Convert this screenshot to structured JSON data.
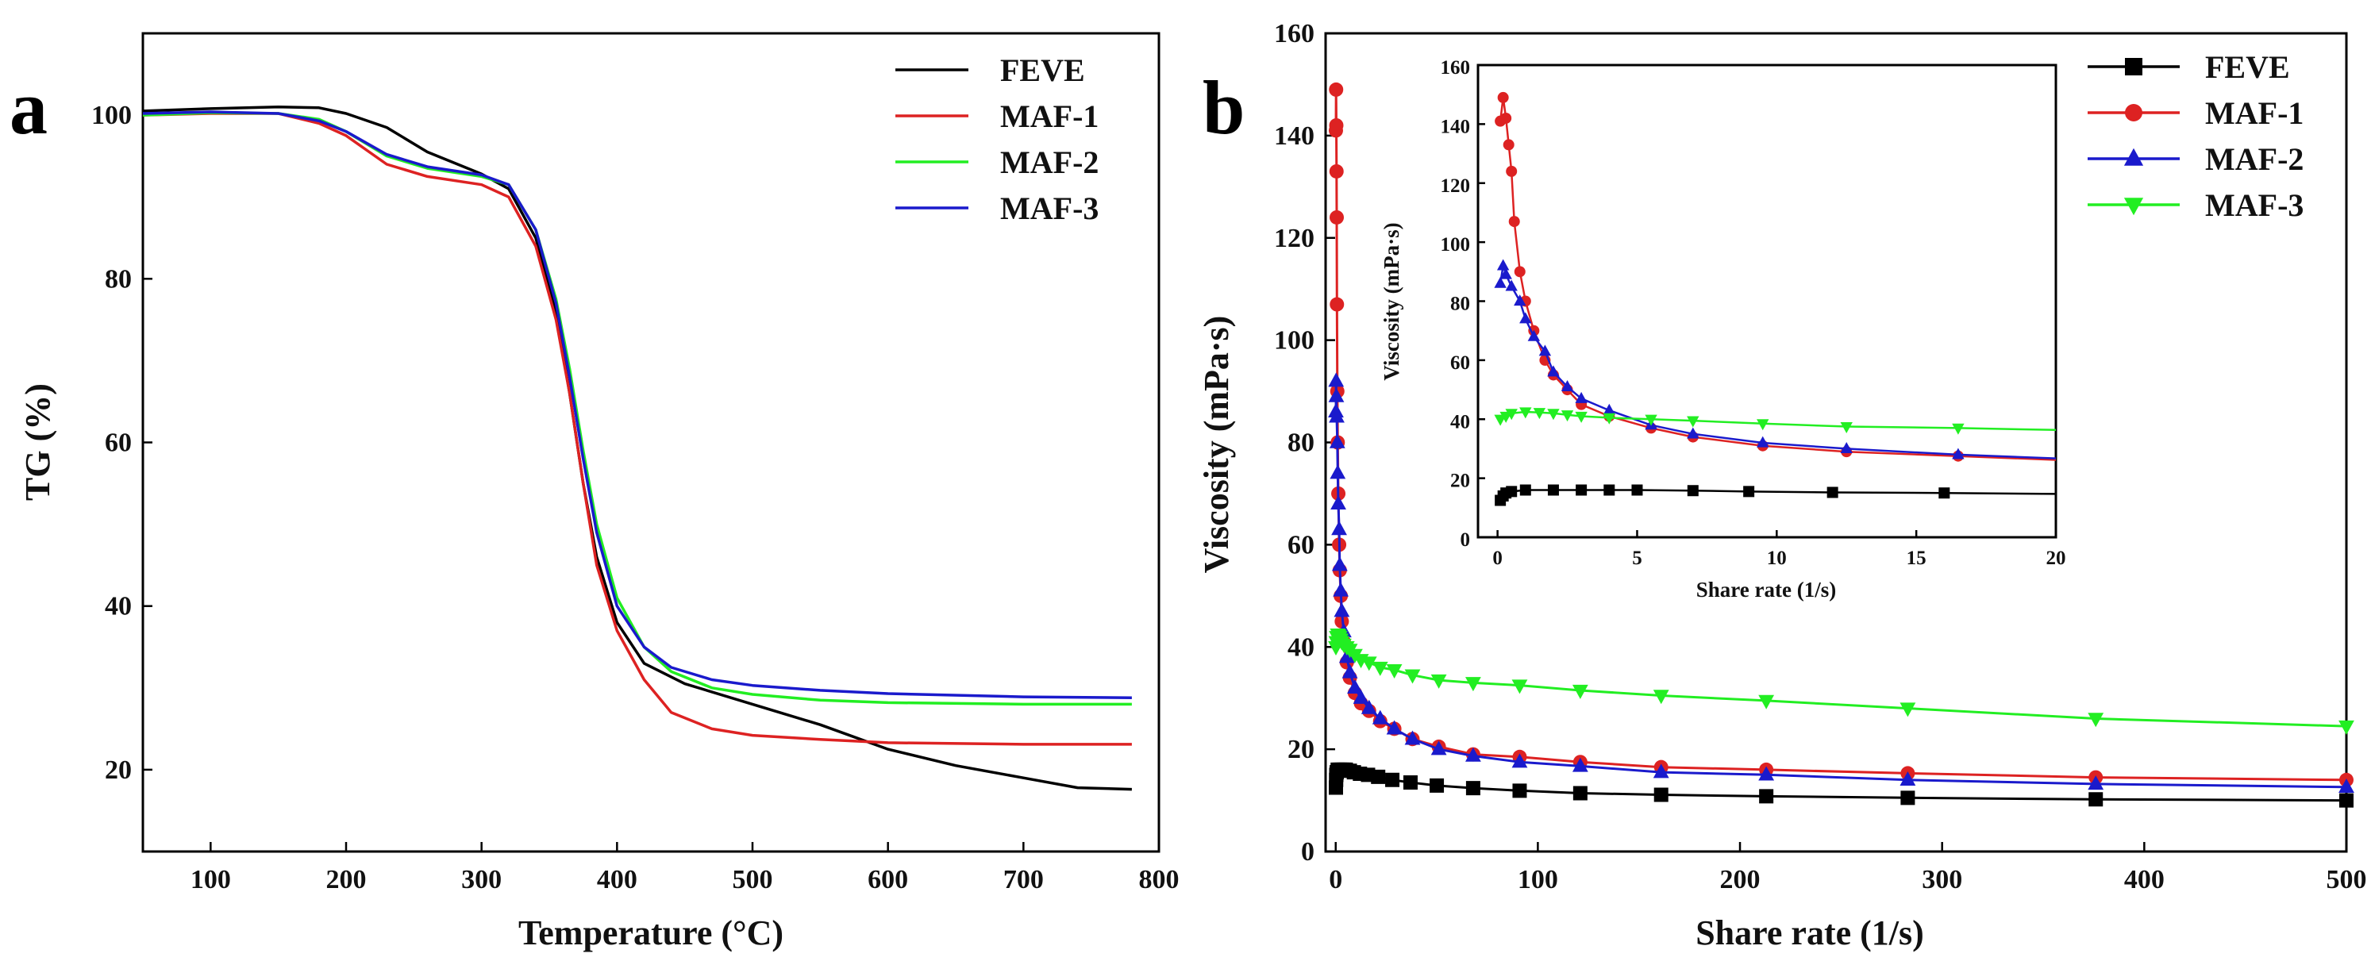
{
  "chart_data": [
    {
      "panel": "a",
      "type": "line",
      "xlabel": "Temperature (°C)",
      "ylabel": "TG (%)",
      "xlim": [
        50,
        800
      ],
      "ylim": [
        10,
        110
      ],
      "xticks": [
        100,
        200,
        300,
        400,
        500,
        600,
        700,
        800
      ],
      "yticks": [
        20,
        40,
        60,
        80,
        100
      ],
      "legend_position": "top-right",
      "series": [
        {
          "name": "FEVE",
          "color": "#000000",
          "points": [
            [
              50,
              100.5
            ],
            [
              100,
              100.8
            ],
            [
              150,
              101
            ],
            [
              180,
              100.9
            ],
            [
              200,
              100.2
            ],
            [
              230,
              98.5
            ],
            [
              260,
              95.5
            ],
            [
              300,
              92.8
            ],
            [
              320,
              91
            ],
            [
              340,
              85
            ],
            [
              355,
              76
            ],
            [
              365,
              66
            ],
            [
              375,
              55
            ],
            [
              385,
              46
            ],
            [
              400,
              38
            ],
            [
              420,
              33
            ],
            [
              450,
              30.5
            ],
            [
              500,
              28
            ],
            [
              550,
              25.5
            ],
            [
              600,
              22.5
            ],
            [
              650,
              20.5
            ],
            [
              700,
              19
            ],
            [
              740,
              17.8
            ],
            [
              780,
              17.6
            ]
          ]
        },
        {
          "name": "MAF-1",
          "color": "#dd2222",
          "points": [
            [
              50,
              100
            ],
            [
              100,
              100.2
            ],
            [
              150,
              100.2
            ],
            [
              180,
              99
            ],
            [
              200,
              97.5
            ],
            [
              230,
              94
            ],
            [
              260,
              92.5
            ],
            [
              300,
              91.5
            ],
            [
              320,
              90
            ],
            [
              340,
              84
            ],
            [
              355,
              75
            ],
            [
              365,
              66
            ],
            [
              375,
              55
            ],
            [
              385,
              45
            ],
            [
              400,
              37
            ],
            [
              420,
              31
            ],
            [
              440,
              27
            ],
            [
              470,
              25
            ],
            [
              500,
              24.2
            ],
            [
              550,
              23.7
            ],
            [
              600,
              23.3
            ],
            [
              700,
              23.1
            ],
            [
              780,
              23.1
            ]
          ]
        },
        {
          "name": "MAF-2",
          "color": "#22ee22",
          "points": [
            [
              50,
              100
            ],
            [
              100,
              100.3
            ],
            [
              150,
              100.2
            ],
            [
              180,
              99.5
            ],
            [
              200,
              98
            ],
            [
              230,
              95
            ],
            [
              260,
              93.5
            ],
            [
              300,
              92.5
            ],
            [
              320,
              91.5
            ],
            [
              340,
              86
            ],
            [
              355,
              77.5
            ],
            [
              365,
              69
            ],
            [
              375,
              59
            ],
            [
              385,
              50
            ],
            [
              400,
              41
            ],
            [
              420,
              35
            ],
            [
              440,
              32
            ],
            [
              470,
              30
            ],
            [
              500,
              29.2
            ],
            [
              550,
              28.5
            ],
            [
              600,
              28.2
            ],
            [
              700,
              28
            ],
            [
              780,
              28
            ]
          ]
        },
        {
          "name": "MAF-3",
          "color": "#1a1acc",
          "points": [
            [
              50,
              100.2
            ],
            [
              100,
              100.4
            ],
            [
              150,
              100.2
            ],
            [
              180,
              99.3
            ],
            [
              200,
              98
            ],
            [
              230,
              95.2
            ],
            [
              260,
              93.7
            ],
            [
              300,
              92.7
            ],
            [
              320,
              91.5
            ],
            [
              340,
              86
            ],
            [
              355,
              77
            ],
            [
              365,
              68
            ],
            [
              375,
              58
            ],
            [
              385,
              49
            ],
            [
              400,
              40
            ],
            [
              420,
              35
            ],
            [
              440,
              32.5
            ],
            [
              470,
              31
            ],
            [
              500,
              30.3
            ],
            [
              550,
              29.7
            ],
            [
              600,
              29.3
            ],
            [
              700,
              28.9
            ],
            [
              780,
              28.8
            ]
          ]
        }
      ]
    },
    {
      "panel": "b",
      "type": "scatter",
      "xlabel": "Share rate (1/s)",
      "ylabel": "Viscosity (mPa·s)",
      "xlim": [
        -5,
        500
      ],
      "ylim": [
        0,
        160
      ],
      "xticks": [
        0,
        100,
        200,
        300,
        400,
        500
      ],
      "yticks": [
        0,
        20,
        40,
        60,
        80,
        100,
        120,
        140,
        160
      ],
      "legend_position": "top-right",
      "series": [
        {
          "name": "FEVE",
          "color": "#000000",
          "marker": "square",
          "points": [
            [
              0.1,
              12.5
            ],
            [
              0.2,
              14
            ],
            [
              0.3,
              15
            ],
            [
              0.5,
              15.5
            ],
            [
              1,
              16
            ],
            [
              2,
              16
            ],
            [
              3,
              16
            ],
            [
              4,
              16
            ],
            [
              5,
              16
            ],
            [
              7,
              15.8
            ],
            [
              9,
              15.5
            ],
            [
              12,
              15.2
            ],
            [
              16,
              15
            ],
            [
              21,
              14.6
            ],
            [
              28,
              14
            ],
            [
              37,
              13.5
            ],
            [
              50,
              12.9
            ],
            [
              68,
              12.4
            ],
            [
              91,
              11.9
            ],
            [
              121,
              11.4
            ],
            [
              161,
              11.1
            ],
            [
              213,
              10.8
            ],
            [
              283,
              10.5
            ],
            [
              376,
              10.2
            ],
            [
              500,
              10
            ]
          ]
        },
        {
          "name": "MAF-1",
          "color": "#dd2222",
          "marker": "circle",
          "points": [
            [
              0.1,
              141
            ],
            [
              0.2,
              149
            ],
            [
              0.3,
              142
            ],
            [
              0.4,
              133
            ],
            [
              0.5,
              124
            ],
            [
              0.6,
              107
            ],
            [
              0.8,
              90
            ],
            [
              1,
              80
            ],
            [
              1.3,
              70
            ],
            [
              1.7,
              60
            ],
            [
              2,
              55
            ],
            [
              2.5,
              50
            ],
            [
              3,
              45
            ],
            [
              4,
              41
            ],
            [
              5.5,
              37
            ],
            [
              7,
              34
            ],
            [
              9.5,
              31
            ],
            [
              12.5,
              29
            ],
            [
              16.5,
              27.5
            ],
            [
              22,
              25.5
            ],
            [
              29,
              24
            ],
            [
              38,
              22
            ],
            [
              51,
              20.5
            ],
            [
              68,
              19
            ],
            [
              91,
              18.5
            ],
            [
              121,
              17.5
            ],
            [
              161,
              16.5
            ],
            [
              213,
              16
            ],
            [
              283,
              15.3
            ],
            [
              376,
              14.5
            ],
            [
              500,
              14
            ]
          ]
        },
        {
          "name": "MAF-2",
          "color": "#1a1acc",
          "marker": "triangle-up",
          "points": [
            [
              0.1,
              86
            ],
            [
              0.2,
              92
            ],
            [
              0.3,
              89
            ],
            [
              0.5,
              85
            ],
            [
              0.8,
              80
            ],
            [
              1,
              74
            ],
            [
              1.3,
              68
            ],
            [
              1.7,
              63
            ],
            [
              2,
              56
            ],
            [
              2.5,
              51
            ],
            [
              3,
              47
            ],
            [
              4,
              43
            ],
            [
              5.5,
              38
            ],
            [
              7,
              35
            ],
            [
              9.5,
              32
            ],
            [
              12.5,
              30
            ],
            [
              16.5,
              28
            ],
            [
              22,
              26
            ],
            [
              29,
              24
            ],
            [
              38,
              22
            ],
            [
              51,
              20
            ],
            [
              68,
              18.7
            ],
            [
              91,
              17.5
            ],
            [
              121,
              16.7
            ],
            [
              161,
              15.5
            ],
            [
              213,
              15
            ],
            [
              283,
              14
            ],
            [
              376,
              13.2
            ],
            [
              500,
              12.6
            ]
          ]
        },
        {
          "name": "MAF-3",
          "color": "#22ee22",
          "marker": "triangle-down",
          "points": [
            [
              0.1,
              40
            ],
            [
              0.3,
              41
            ],
            [
              0.5,
              42
            ],
            [
              1,
              42.5
            ],
            [
              1.5,
              42.3
            ],
            [
              2,
              42
            ],
            [
              2.5,
              41.5
            ],
            [
              3,
              41
            ],
            [
              4,
              40.5
            ],
            [
              5.5,
              40
            ],
            [
              7,
              39.5
            ],
            [
              9.5,
              38.5
            ],
            [
              12.5,
              37.5
            ],
            [
              16.5,
              37
            ],
            [
              22,
              36
            ],
            [
              29,
              35.5
            ],
            [
              38,
              34.5
            ],
            [
              51,
              33.5
            ],
            [
              68,
              33
            ],
            [
              91,
              32.5
            ],
            [
              121,
              31.5
            ],
            [
              161,
              30.5
            ],
            [
              213,
              29.5
            ],
            [
              283,
              28
            ],
            [
              376,
              26
            ],
            [
              500,
              24.5
            ]
          ]
        }
      ],
      "inset": {
        "type": "scatter",
        "xlabel": "Share rate (1/s)",
        "ylabel": "Viscosity (mPa·s)",
        "xlim": [
          -0.7,
          20
        ],
        "ylim": [
          0,
          160
        ],
        "xticks": [
          0,
          5,
          10,
          15,
          20
        ],
        "yticks": [
          0,
          20,
          40,
          60,
          80,
          100,
          120,
          140,
          160
        ]
      }
    }
  ],
  "labels": {
    "panel_a": "a",
    "panel_b": "b"
  }
}
